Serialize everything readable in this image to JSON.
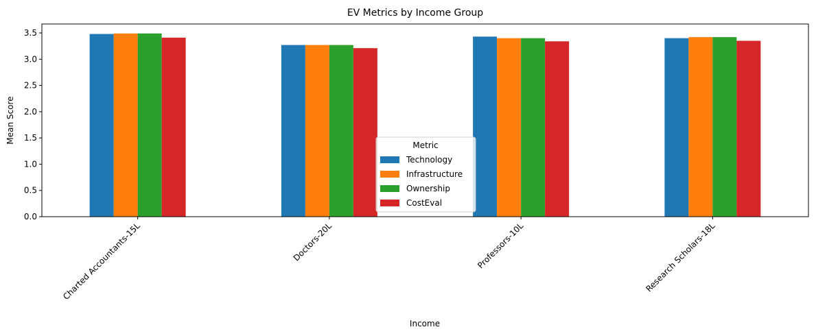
{
  "chart_data": {
    "type": "bar",
    "title": "EV Metrics by Income Group",
    "xlabel": "Income",
    "ylabel": "Mean Score",
    "categories": [
      "Charted Accountants-15L",
      "Doctors-20L",
      "Professors-10L",
      "Research Scholars-18L"
    ],
    "series": [
      {
        "name": "Technology",
        "color": "#1f77b4",
        "values": [
          3.48,
          3.27,
          3.43,
          3.4
        ]
      },
      {
        "name": "Infrastructure",
        "color": "#ff7f0e",
        "values": [
          3.49,
          3.27,
          3.4,
          3.42
        ]
      },
      {
        "name": "Ownership",
        "color": "#2ca02c",
        "values": [
          3.49,
          3.27,
          3.4,
          3.42
        ]
      },
      {
        "name": "CostEval",
        "color": "#d62728",
        "values": [
          3.41,
          3.21,
          3.34,
          3.35
        ]
      }
    ],
    "ylim": [
      0,
      3.67
    ],
    "yticks": [
      "0.0",
      "0.5",
      "1.0",
      "1.5",
      "2.0",
      "2.5",
      "3.0",
      "3.5"
    ],
    "legend": {
      "title": "Metric",
      "placement": "lower-center"
    },
    "grid": false
  }
}
